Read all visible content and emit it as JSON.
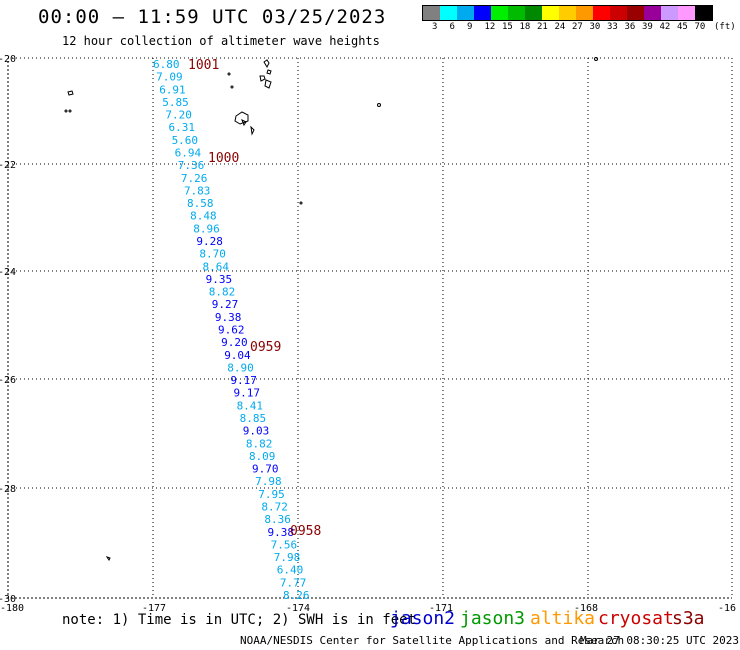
{
  "header": {
    "title": "00:00 — 11:59 UTC 03/25/2023",
    "subtitle": "12 hour collection of altimeter wave heights"
  },
  "color_scale": {
    "unit": "(ft)",
    "labels": [
      "3",
      "6",
      "9",
      "12",
      "15",
      "18",
      "21",
      "24",
      "27",
      "30",
      "33",
      "36",
      "39",
      "42",
      "45",
      "70"
    ],
    "colors": [
      "#808080",
      "#00ffff",
      "#00aaee",
      "#0000ff",
      "#00ee00",
      "#00bb00",
      "#008800",
      "#ffff00",
      "#ffcc00",
      "#ff9900",
      "#ff0000",
      "#cc0000",
      "#990000",
      "#990099",
      "#cc99ff",
      "#ff99ff",
      "#000000"
    ]
  },
  "axes": {
    "lat_labels": [
      "-20",
      "-22",
      "-24",
      "-26",
      "-28",
      "-30"
    ],
    "lon_labels": [
      "-180",
      "-177",
      "-174",
      "-171",
      "-168",
      "-16"
    ]
  },
  "track": {
    "times": [
      {
        "label": "1001",
        "color": "#8b0000"
      },
      {
        "label": "1000",
        "color": "#8b0000"
      },
      {
        "label": "0959",
        "color": "#8b0000"
      },
      {
        "label": "0958",
        "color": "#8b0000"
      }
    ],
    "values": [
      "6.80",
      "7.09",
      "6.91",
      "5.85",
      "7.20",
      "6.31",
      "5.60",
      "6.94",
      "7.36",
      "7.26",
      "7.83",
      "8.58",
      "8.48",
      "8.96",
      "9.28",
      "8.70",
      "8.64",
      "9.35",
      "8.82",
      "9.27",
      "9.38",
      "9.62",
      "9.20",
      "9.04",
      "8.90",
      "9.17",
      "9.17",
      "8.41",
      "8.85",
      "9.03",
      "8.82",
      "8.09",
      "9.70",
      "7.98",
      "7.95",
      "8.72",
      "8.36",
      "9.38",
      "7.56",
      "7.98",
      "6.40",
      "7.77",
      "8.26"
    ]
  },
  "footer": {
    "note": "note: 1) Time is in UTC; 2) SWH is in feet",
    "satellites": [
      {
        "name": "jason2",
        "color": "#0000cc"
      },
      {
        "name": "jason3",
        "color": "#009900"
      },
      {
        "name": "altika",
        "color": "#ff9900"
      },
      {
        "name": "cryosat",
        "color": "#cc0000"
      },
      {
        "name": "s3a",
        "color": "#8b0000"
      }
    ],
    "credits": "NOAA/NESDIS Center for Satellite Applications and Research",
    "timestamp": "Mar 27 08:30:25 UTC 2023"
  }
}
